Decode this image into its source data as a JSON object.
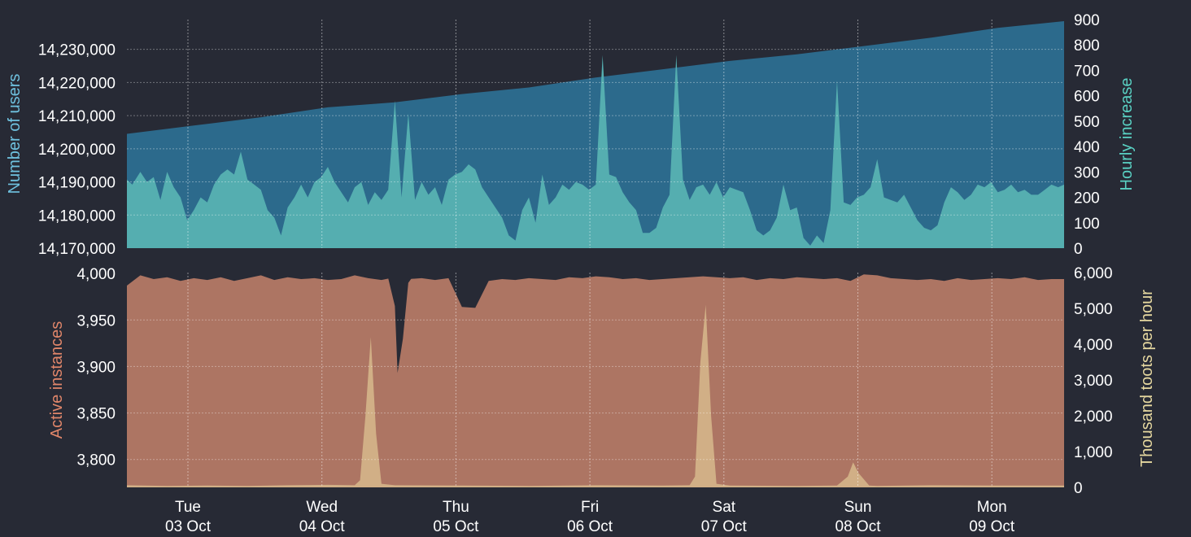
{
  "chart_data": [
    {
      "type": "area",
      "x_ticks": [
        {
          "day": "Tue",
          "date": "03 Oct"
        },
        {
          "day": "Wed",
          "date": "04 Oct"
        },
        {
          "day": "Thu",
          "date": "05 Oct"
        },
        {
          "day": "Fri",
          "date": "06 Oct"
        },
        {
          "day": "Sat",
          "date": "07 Oct"
        },
        {
          "day": "Sun",
          "date": "08 Oct"
        },
        {
          "day": "Mon",
          "date": "09 Oct"
        }
      ],
      "y_left": {
        "label": "Number of users",
        "ylim": [
          14170000,
          14239000
        ],
        "ticks": [
          "14,170,000",
          "14,180,000",
          "14,190,000",
          "14,200,000",
          "14,210,000",
          "14,220,000",
          "14,230,000"
        ],
        "color": "#6fc2e0"
      },
      "y_right": {
        "label": "Hourly increase",
        "ylim": [
          0,
          900
        ],
        "ticks": [
          "0",
          "100",
          "200",
          "300",
          "400",
          "500",
          "600",
          "700",
          "800",
          "900"
        ],
        "color": "#5ad2c4"
      },
      "series": [
        {
          "axis": "left",
          "color": "#2c6a8c",
          "x_days": [
            0,
            0.5,
            1,
            1.5,
            2,
            2.5,
            3,
            3.5,
            4,
            4.5,
            5,
            5.5,
            6,
            6.5,
            7
          ],
          "values": [
            14204500,
            14207000,
            14209500,
            14212500,
            14214000,
            14216500,
            14218500,
            14221500,
            14224000,
            14226500,
            14228500,
            14231000,
            14233500,
            14236500,
            14238500
          ]
        },
        {
          "axis": "right",
          "color": "#55aeb0",
          "x_days": [
            0,
            0.04,
            0.1,
            0.15,
            0.2,
            0.25,
            0.3,
            0.35,
            0.4,
            0.45,
            0.5,
            0.55,
            0.6,
            0.65,
            0.7,
            0.75,
            0.8,
            0.85,
            0.9,
            0.95,
            1.0,
            1.05,
            1.1,
            1.15,
            1.2,
            1.25,
            1.3,
            1.35,
            1.4,
            1.45,
            1.5,
            1.55,
            1.6,
            1.65,
            1.7,
            1.75,
            1.8,
            1.85,
            1.9,
            1.95,
            2.0,
            2.05,
            2.1,
            2.15,
            2.2,
            2.25,
            2.3,
            2.35,
            2.4,
            2.45,
            2.5,
            2.55,
            2.6,
            2.65,
            2.7,
            2.75,
            2.8,
            2.85,
            2.9,
            2.95,
            3.0,
            3.05,
            3.1,
            3.15,
            3.2,
            3.25,
            3.3,
            3.35,
            3.4,
            3.45,
            3.5,
            3.55,
            3.6,
            3.65,
            3.7,
            3.75,
            3.8,
            3.85,
            3.9,
            3.95,
            4.0,
            4.05,
            4.1,
            4.15,
            4.2,
            4.25,
            4.3,
            4.35,
            4.4,
            4.45,
            4.5,
            4.55,
            4.6,
            4.65,
            4.7,
            4.75,
            4.8,
            4.85,
            4.9,
            4.95,
            5.0,
            5.05,
            5.1,
            5.15,
            5.2,
            5.25,
            5.3,
            5.35,
            5.4,
            5.45,
            5.5,
            5.55,
            5.6,
            5.65,
            5.7,
            5.75,
            5.8,
            5.85,
            5.9,
            5.95,
            6.0,
            6.05,
            6.1,
            6.15,
            6.2,
            6.25,
            6.3,
            6.35,
            6.4,
            6.45,
            6.5,
            6.55,
            6.6,
            6.65,
            6.7,
            6.75,
            6.8,
            6.85,
            6.9,
            6.95,
            7.0
          ],
          "values": [
            270,
            250,
            300,
            260,
            280,
            190,
            300,
            240,
            200,
            110,
            150,
            200,
            180,
            250,
            290,
            310,
            290,
            380,
            270,
            250,
            230,
            150,
            120,
            50,
            160,
            200,
            250,
            200,
            260,
            280,
            320,
            260,
            220,
            180,
            240,
            260,
            170,
            220,
            190,
            230,
            580,
            200,
            530,
            190,
            260,
            210,
            240,
            170,
            270,
            290,
            300,
            330,
            310,
            240,
            200,
            160,
            120,
            50,
            30,
            150,
            200,
            100,
            290,
            170,
            200,
            250,
            230,
            260,
            250,
            230,
            250,
            760,
            290,
            280,
            220,
            180,
            150,
            60,
            60,
            80,
            160,
            210,
            760,
            270,
            190,
            240,
            250,
            210,
            260,
            200,
            240,
            230,
            220,
            150,
            70,
            50,
            70,
            120,
            250,
            150,
            160,
            40,
            10,
            50,
            20,
            150,
            660,
            180,
            170,
            200,
            210,
            240,
            350,
            200,
            190,
            180,
            210,
            160,
            110,
            80,
            70,
            90,
            180,
            240,
            220,
            190,
            210,
            250,
            240,
            260,
            220,
            230,
            250,
            220,
            230,
            210,
            210,
            230,
            250,
            240,
            250
          ]
        }
      ]
    },
    {
      "type": "area",
      "x_ticks": [
        {
          "day": "Tue",
          "date": "03 Oct"
        },
        {
          "day": "Wed",
          "date": "04 Oct"
        },
        {
          "day": "Thu",
          "date": "05 Oct"
        },
        {
          "day": "Fri",
          "date": "06 Oct"
        },
        {
          "day": "Sat",
          "date": "07 Oct"
        },
        {
          "day": "Sun",
          "date": "08 Oct"
        },
        {
          "day": "Mon",
          "date": "09 Oct"
        }
      ],
      "y_left": {
        "label": "Active instances",
        "ylim": [
          3770,
          4001
        ],
        "ticks": [
          "3,800",
          "3,850",
          "3,900",
          "3,950",
          "4,000"
        ],
        "color": "#e0866a"
      },
      "y_right": {
        "label": "Thousand toots per hour",
        "ylim": [
          0,
          6000
        ],
        "ticks": [
          "0",
          "1,000",
          "2,000",
          "3,000",
          "4,000",
          "5,000",
          "6,000"
        ],
        "color": "#e6d8a0"
      },
      "series": [
        {
          "axis": "left",
          "color": "#ad7563",
          "x_days": [
            0,
            0.1,
            0.2,
            0.3,
            0.4,
            0.5,
            0.6,
            0.7,
            0.8,
            0.9,
            1.0,
            1.1,
            1.2,
            1.3,
            1.4,
            1.5,
            1.6,
            1.7,
            1.8,
            1.9,
            2.0,
            2.1,
            2.2,
            2.3,
            2.4,
            2.5,
            2.6,
            2.7,
            2.8,
            2.9,
            3.0,
            3.1,
            3.2,
            3.3,
            3.4,
            3.5,
            3.6,
            3.7,
            3.8,
            3.9,
            4.0,
            4.1,
            4.2,
            4.3,
            4.4,
            4.5,
            4.6,
            4.7,
            4.8,
            4.9,
            5.0,
            5.1,
            5.2,
            5.3,
            5.4,
            5.5,
            5.6,
            5.7,
            5.8,
            5.9,
            6.0,
            6.1,
            6.2,
            6.3,
            6.4,
            6.5,
            6.6,
            6.7,
            6.8,
            6.9,
            7.0
          ],
          "values": [
            3987,
            3998,
            3994,
            3996,
            3992,
            3995,
            3993,
            3996,
            3992,
            3995,
            3998,
            3993,
            3996,
            3994,
            3995,
            3993,
            3994,
            3998,
            3995,
            3993,
            3996,
            3994,
            3995,
            3993,
            3995,
            3964,
            3963,
            3992,
            3994,
            3993,
            3995,
            3994,
            3993,
            3996,
            3995,
            3997,
            3996,
            3994,
            3995,
            3993,
            3994,
            3995,
            3996,
            3997,
            3996,
            3995,
            3996,
            3993,
            3995,
            3994,
            3996,
            3995,
            3994,
            3995,
            3992,
            3999,
            3998,
            3995,
            3994,
            3993,
            3994,
            3992,
            3995,
            3993,
            3994,
            3995,
            3994,
            3996,
            3993,
            3994,
            3994
          ],
          "dip": {
            "x_days": [
              1.95,
              2.0,
              2.02,
              2.06,
              2.1,
              2.13
            ],
            "values": [
              3995,
              3965,
              3893,
              3930,
              3990,
              3996
            ]
          }
        },
        {
          "axis": "right",
          "color": "#d1af86",
          "x_days": [
            0,
            0.3,
            0.6,
            0.9,
            1.2,
            1.5,
            1.7,
            1.74,
            1.78,
            1.82,
            1.86,
            1.9,
            2.0,
            2.5,
            3.0,
            3.5,
            4.0,
            4.2,
            4.24,
            4.28,
            4.32,
            4.36,
            4.4,
            4.5,
            5.0,
            5.3,
            5.38,
            5.42,
            5.46,
            5.54,
            5.6,
            6.0,
            6.5,
            7.0
          ],
          "values": [
            60,
            40,
            50,
            40,
            60,
            70,
            60,
            200,
            2000,
            4200,
            1500,
            100,
            60,
            50,
            40,
            60,
            50,
            60,
            300,
            3500,
            5100,
            2000,
            100,
            50,
            40,
            50,
            300,
            700,
            400,
            50,
            40,
            60,
            50,
            50
          ]
        }
      ]
    }
  ]
}
